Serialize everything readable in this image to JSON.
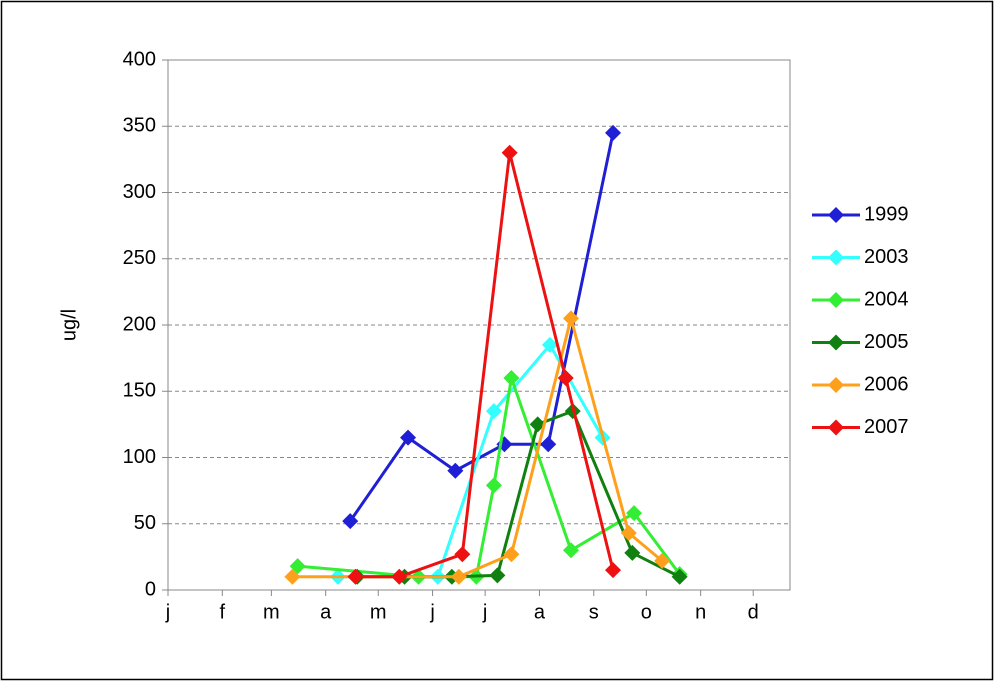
{
  "chart_data": {
    "type": "line",
    "y_label": "ug/l",
    "xlim": [
      0,
      355
    ],
    "xticks": [
      {
        "value": 0,
        "label": "j"
      },
      {
        "value": 31,
        "label": "f"
      },
      {
        "value": 59,
        "label": "m"
      },
      {
        "value": 90,
        "label": "a"
      },
      {
        "value": 120,
        "label": "m"
      },
      {
        "value": 151,
        "label": "j"
      },
      {
        "value": 181,
        "label": "j"
      },
      {
        "value": 212,
        "label": "a"
      },
      {
        "value": 243,
        "label": "s"
      },
      {
        "value": 273,
        "label": "o"
      },
      {
        "value": 304,
        "label": "n"
      },
      {
        "value": 334,
        "label": "d"
      }
    ],
    "ylim": [
      0,
      400
    ],
    "yticks": [
      0,
      50,
      100,
      150,
      200,
      250,
      300,
      350,
      400
    ],
    "grid": true,
    "legend": "right",
    "series": [
      {
        "name": "1999",
        "color": "#1f1fd6",
        "x": [
          104,
          137,
          164,
          192,
          217,
          254
        ],
        "values": [
          52,
          115,
          90,
          110,
          110,
          345
        ]
      },
      {
        "name": "2003",
        "color": "#33ffff",
        "x": [
          97,
          154,
          186,
          218,
          248
        ],
        "values": [
          10,
          10,
          135,
          185,
          115
        ]
      },
      {
        "name": "2004",
        "color": "#33ee33",
        "x": [
          74,
          143,
          176,
          186,
          196,
          230,
          266,
          292
        ],
        "values": [
          18,
          10,
          10,
          79,
          160,
          30,
          58,
          12
        ]
      },
      {
        "name": "2005",
        "color": "#108010",
        "x": [
          108,
          135,
          162,
          188,
          211,
          231,
          265,
          292
        ],
        "values": [
          10,
          10,
          10,
          11,
          125,
          135,
          28,
          10
        ]
      },
      {
        "name": "2006",
        "color": "#ffa01c",
        "x": [
          71,
          166,
          196,
          230,
          263,
          282
        ],
        "values": [
          10,
          10,
          27,
          205,
          43,
          22
        ]
      },
      {
        "name": "2007",
        "color": "#ee1111",
        "x": [
          107,
          132,
          168,
          195,
          227,
          254
        ],
        "values": [
          10,
          10,
          27,
          330,
          160,
          15
        ]
      }
    ]
  }
}
